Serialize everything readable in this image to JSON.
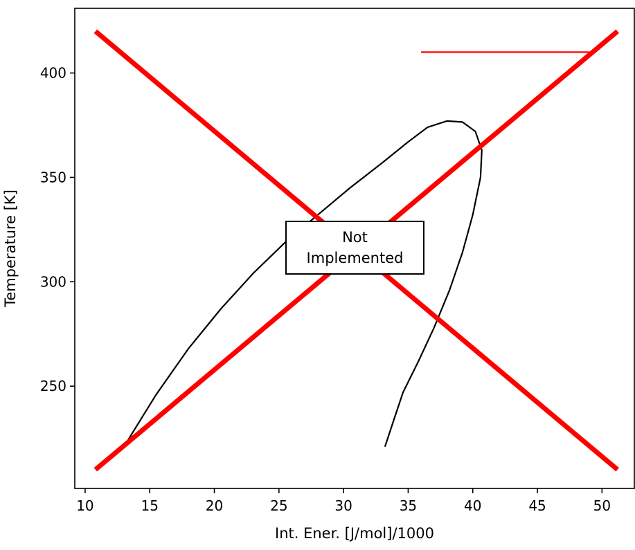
{
  "chart_data": {
    "type": "line",
    "title": "",
    "xlabel": "Int. Ener. [J/mol]/1000",
    "ylabel": "Temperature [K]",
    "xlim": [
      9.2,
      52.5
    ],
    "ylim": [
      201,
      431
    ],
    "xticks": [
      10,
      15,
      20,
      25,
      30,
      35,
      40,
      45,
      50
    ],
    "yticks": [
      250,
      300,
      350,
      400
    ],
    "grid": false,
    "legend": "none",
    "series": [
      {
        "color": "#000000",
        "x": [
          13.0,
          15.5,
          18.0,
          20.5,
          23.0,
          25.5,
          28.0,
          30.5,
          33.0,
          35.0,
          36.5,
          38.0,
          39.2,
          40.2,
          40.7,
          40.6,
          40.0,
          39.2,
          38.2,
          37.0,
          35.8,
          34.6,
          33.9,
          33.2
        ],
        "y": [
          221,
          246,
          268,
          287,
          304,
          319,
          332,
          345,
          357,
          367,
          374,
          377,
          376.5,
          372,
          363,
          350,
          332,
          314,
          296,
          278,
          262,
          247,
          234,
          221
        ]
      }
    ],
    "not_implemented": {
      "label": "Not Implemented",
      "label_lines": [
        "Not",
        "Implemented"
      ],
      "color": "#ff0000",
      "cross_x": [
        10.8,
        51.2
      ],
      "cross_y": [
        210,
        420
      ],
      "legend_line": {
        "x": [
          36,
          49
        ],
        "y": 410
      }
    }
  }
}
